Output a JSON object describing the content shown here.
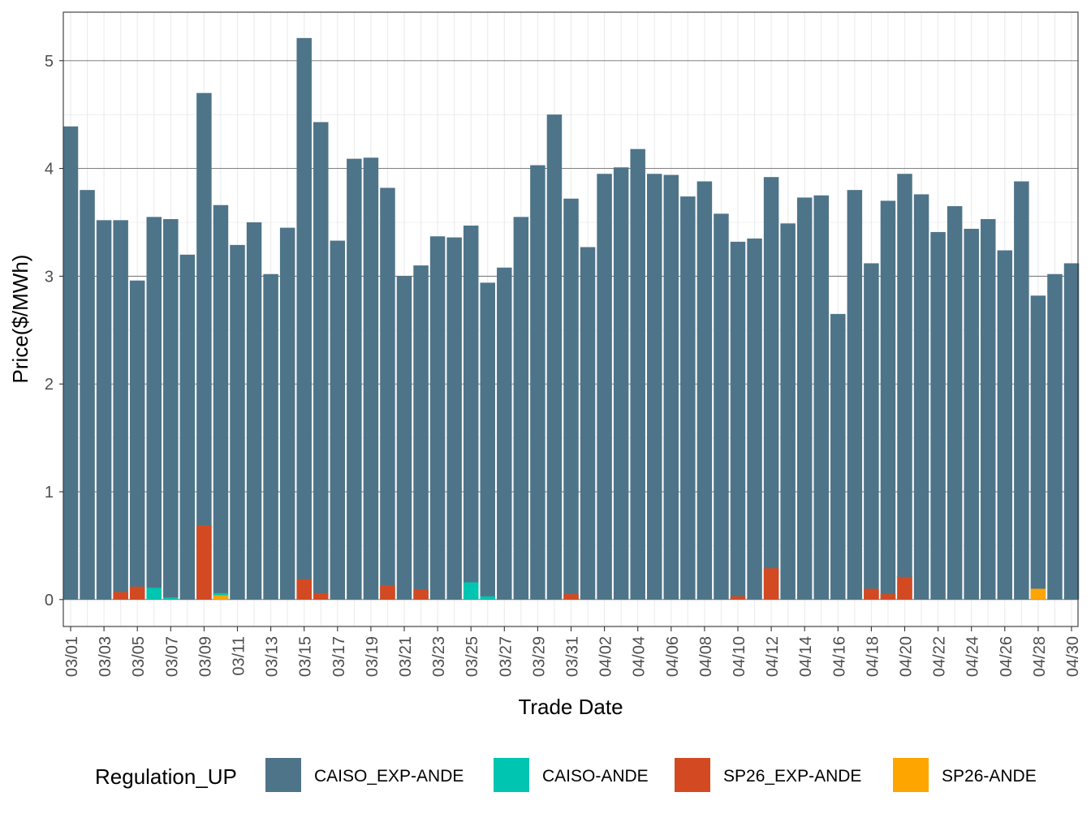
{
  "chart_data": {
    "type": "bar",
    "title": "",
    "xlabel": "Trade Date",
    "ylabel": "Price($/MWh)",
    "ylim": [
      -0.25,
      5.45
    ],
    "yticks": [
      0,
      1,
      2,
      3,
      4,
      5
    ],
    "ytick_labels": [
      "0",
      "1",
      "2",
      "3",
      "4",
      "5"
    ],
    "grid": true,
    "legend": {
      "title": "Regulation_UP",
      "position": "bottom"
    },
    "categories": [
      "03/01",
      "03/02",
      "03/03",
      "03/04",
      "03/05",
      "03/06",
      "03/07",
      "03/08",
      "03/09",
      "03/10",
      "03/11",
      "03/12",
      "03/13",
      "03/14",
      "03/15",
      "03/16",
      "03/17",
      "03/18",
      "03/19",
      "03/20",
      "03/21",
      "03/22",
      "03/23",
      "03/24",
      "03/25",
      "03/26",
      "03/27",
      "03/28",
      "03/29",
      "03/30",
      "03/31",
      "04/01",
      "04/02",
      "04/03",
      "04/04",
      "04/05",
      "04/06",
      "04/07",
      "04/08",
      "04/09",
      "04/10",
      "04/11",
      "04/12",
      "04/13",
      "04/14",
      "04/15",
      "04/16",
      "04/17",
      "04/18",
      "04/19",
      "04/20",
      "04/21",
      "04/22",
      "04/23",
      "04/24",
      "04/25",
      "04/26",
      "04/27",
      "04/28",
      "04/29",
      "04/30"
    ],
    "tick_labels": [
      "03/01",
      "03/03",
      "03/05",
      "03/07",
      "03/09",
      "03/11",
      "03/13",
      "03/15",
      "03/17",
      "03/19",
      "03/21",
      "03/23",
      "03/25",
      "03/27",
      "03/29",
      "03/31",
      "04/02",
      "04/04",
      "04/06",
      "04/08",
      "04/10",
      "04/12",
      "04/14",
      "04/16",
      "04/18",
      "04/20",
      "04/22",
      "04/24",
      "04/26",
      "04/28",
      "04/30"
    ],
    "series": [
      {
        "name": "CAISO_EXP-ANDE",
        "color": "#4e7489",
        "values": [
          4.39,
          3.8,
          3.52,
          3.52,
          2.96,
          3.55,
          3.53,
          3.2,
          4.7,
          3.66,
          3.29,
          3.5,
          3.02,
          3.45,
          5.21,
          4.43,
          3.33,
          4.09,
          4.1,
          3.82,
          3.0,
          3.1,
          3.37,
          3.36,
          3.47,
          2.94,
          3.08,
          3.55,
          4.03,
          4.5,
          3.72,
          3.27,
          3.95,
          4.01,
          4.18,
          3.95,
          3.94,
          3.74,
          3.88,
          3.58,
          3.32,
          3.35,
          3.92,
          3.49,
          3.73,
          3.75,
          2.65,
          3.8,
          3.12,
          3.7,
          3.95,
          3.76,
          3.41,
          3.65,
          3.44,
          3.53,
          3.24,
          3.88,
          2.82,
          3.02,
          3.12
        ]
      },
      {
        "name": "CAISO-ANDE",
        "color": "#00c5b0",
        "values": [
          0,
          0,
          0,
          0,
          0,
          0.11,
          0.02,
          0,
          0,
          0.06,
          0,
          0,
          0,
          0,
          0,
          0,
          0,
          0,
          0,
          0,
          0,
          0,
          0,
          0,
          0.16,
          0.03,
          0,
          0,
          0,
          0,
          0,
          0,
          0,
          0,
          0,
          0,
          0,
          0,
          0,
          0,
          0,
          0,
          0,
          0,
          0,
          0,
          0,
          0,
          0,
          0,
          0,
          0,
          0,
          0,
          0,
          0,
          0,
          0,
          0,
          0,
          0
        ]
      },
      {
        "name": "SP26_EXP-ANDE",
        "color": "#d34a22",
        "values": [
          0,
          0,
          0,
          0.07,
          0.12,
          0,
          0,
          0,
          0.69,
          0,
          0,
          0,
          0,
          0,
          0.19,
          0.06,
          0,
          0,
          0,
          0.13,
          0,
          0.09,
          0,
          0,
          0,
          0,
          0,
          0,
          0,
          0,
          0.05,
          0,
          0,
          0,
          0,
          0,
          0,
          0,
          0,
          0,
          0.03,
          0,
          0.29,
          0,
          0,
          0,
          0,
          0,
          0.1,
          0.05,
          0.21,
          0,
          0,
          0,
          0,
          0,
          0,
          0,
          0,
          0,
          0
        ]
      },
      {
        "name": "SP26-ANDE",
        "color": "#ffa500",
        "values": [
          0,
          0,
          0,
          0,
          0,
          0,
          0,
          0,
          0,
          0.04,
          0,
          0,
          0,
          0,
          0,
          0,
          0,
          0,
          0,
          0,
          0,
          0,
          0,
          0,
          0,
          0,
          0,
          0,
          0,
          0,
          0,
          0,
          0,
          0,
          0,
          0,
          0,
          0,
          0,
          0,
          0,
          0,
          0,
          0,
          0,
          0,
          0,
          0,
          0,
          0,
          0,
          0,
          0,
          0,
          0,
          0,
          0,
          0,
          0.1,
          0,
          0
        ]
      }
    ]
  }
}
